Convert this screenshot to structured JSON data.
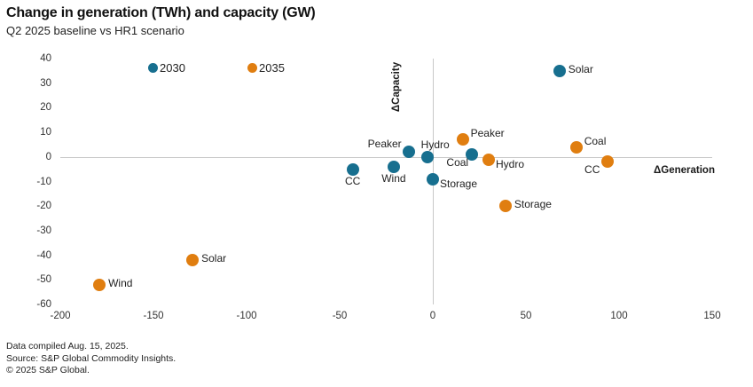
{
  "footer": {
    "compiled": "Data compiled Aug. 15, 2025.",
    "source": "Source: S&P Global Commodity Insights.",
    "copyright": "© 2025 S&P Global."
  },
  "chart_data": {
    "type": "scatter",
    "title": "Change in generation (TWh) and capacity (GW)",
    "subtitle": "Q2 2025 baseline vs HR1 scenario",
    "xlabel": "ΔGeneration",
    "ylabel": "ΔCapacity",
    "xlim": [
      -200,
      150
    ],
    "ylim": [
      -60,
      40
    ],
    "x_ticks": [
      -200,
      -150,
      -100,
      -50,
      0,
      50,
      100,
      150
    ],
    "y_ticks": [
      40,
      30,
      20,
      10,
      0,
      -10,
      -20,
      -30,
      -40,
      -50,
      -60
    ],
    "grid": false,
    "legend_position": "top-inside",
    "series": [
      {
        "name": "2030",
        "color": "#176F8F",
        "points": [
          {
            "label": "Solar",
            "x": 68,
            "y": 35,
            "label_pos": "right"
          },
          {
            "label": "Peaker",
            "x": -13,
            "y": 2,
            "label_pos": "left-up"
          },
          {
            "label": "Hydro",
            "x": -3,
            "y": 0,
            "label_pos": "above"
          },
          {
            "label": "Coal",
            "x": 21,
            "y": 1,
            "label_pos": "below-left"
          },
          {
            "label": "CC",
            "x": -43,
            "y": -5,
            "label_pos": "below"
          },
          {
            "label": "Wind",
            "x": -21,
            "y": -4,
            "label_pos": "below"
          },
          {
            "label": "Storage",
            "x": 0,
            "y": -9,
            "label_pos": "right-down"
          }
        ]
      },
      {
        "name": "2035",
        "color": "#E07E10",
        "points": [
          {
            "label": "Peaker",
            "x": 16,
            "y": 7,
            "label_pos": "right-up"
          },
          {
            "label": "Coal",
            "x": 77,
            "y": 4,
            "label_pos": "right-up"
          },
          {
            "label": "Hydro",
            "x": 30,
            "y": -1,
            "label_pos": "right-down"
          },
          {
            "label": "CC",
            "x": 94,
            "y": -2,
            "label_pos": "left-down"
          },
          {
            "label": "Storage",
            "x": 39,
            "y": -20,
            "label_pos": "right"
          },
          {
            "label": "Solar",
            "x": -129,
            "y": -42,
            "label_pos": "right"
          },
          {
            "label": "Wind",
            "x": -179,
            "y": -52,
            "label_pos": "right"
          }
        ]
      }
    ]
  }
}
